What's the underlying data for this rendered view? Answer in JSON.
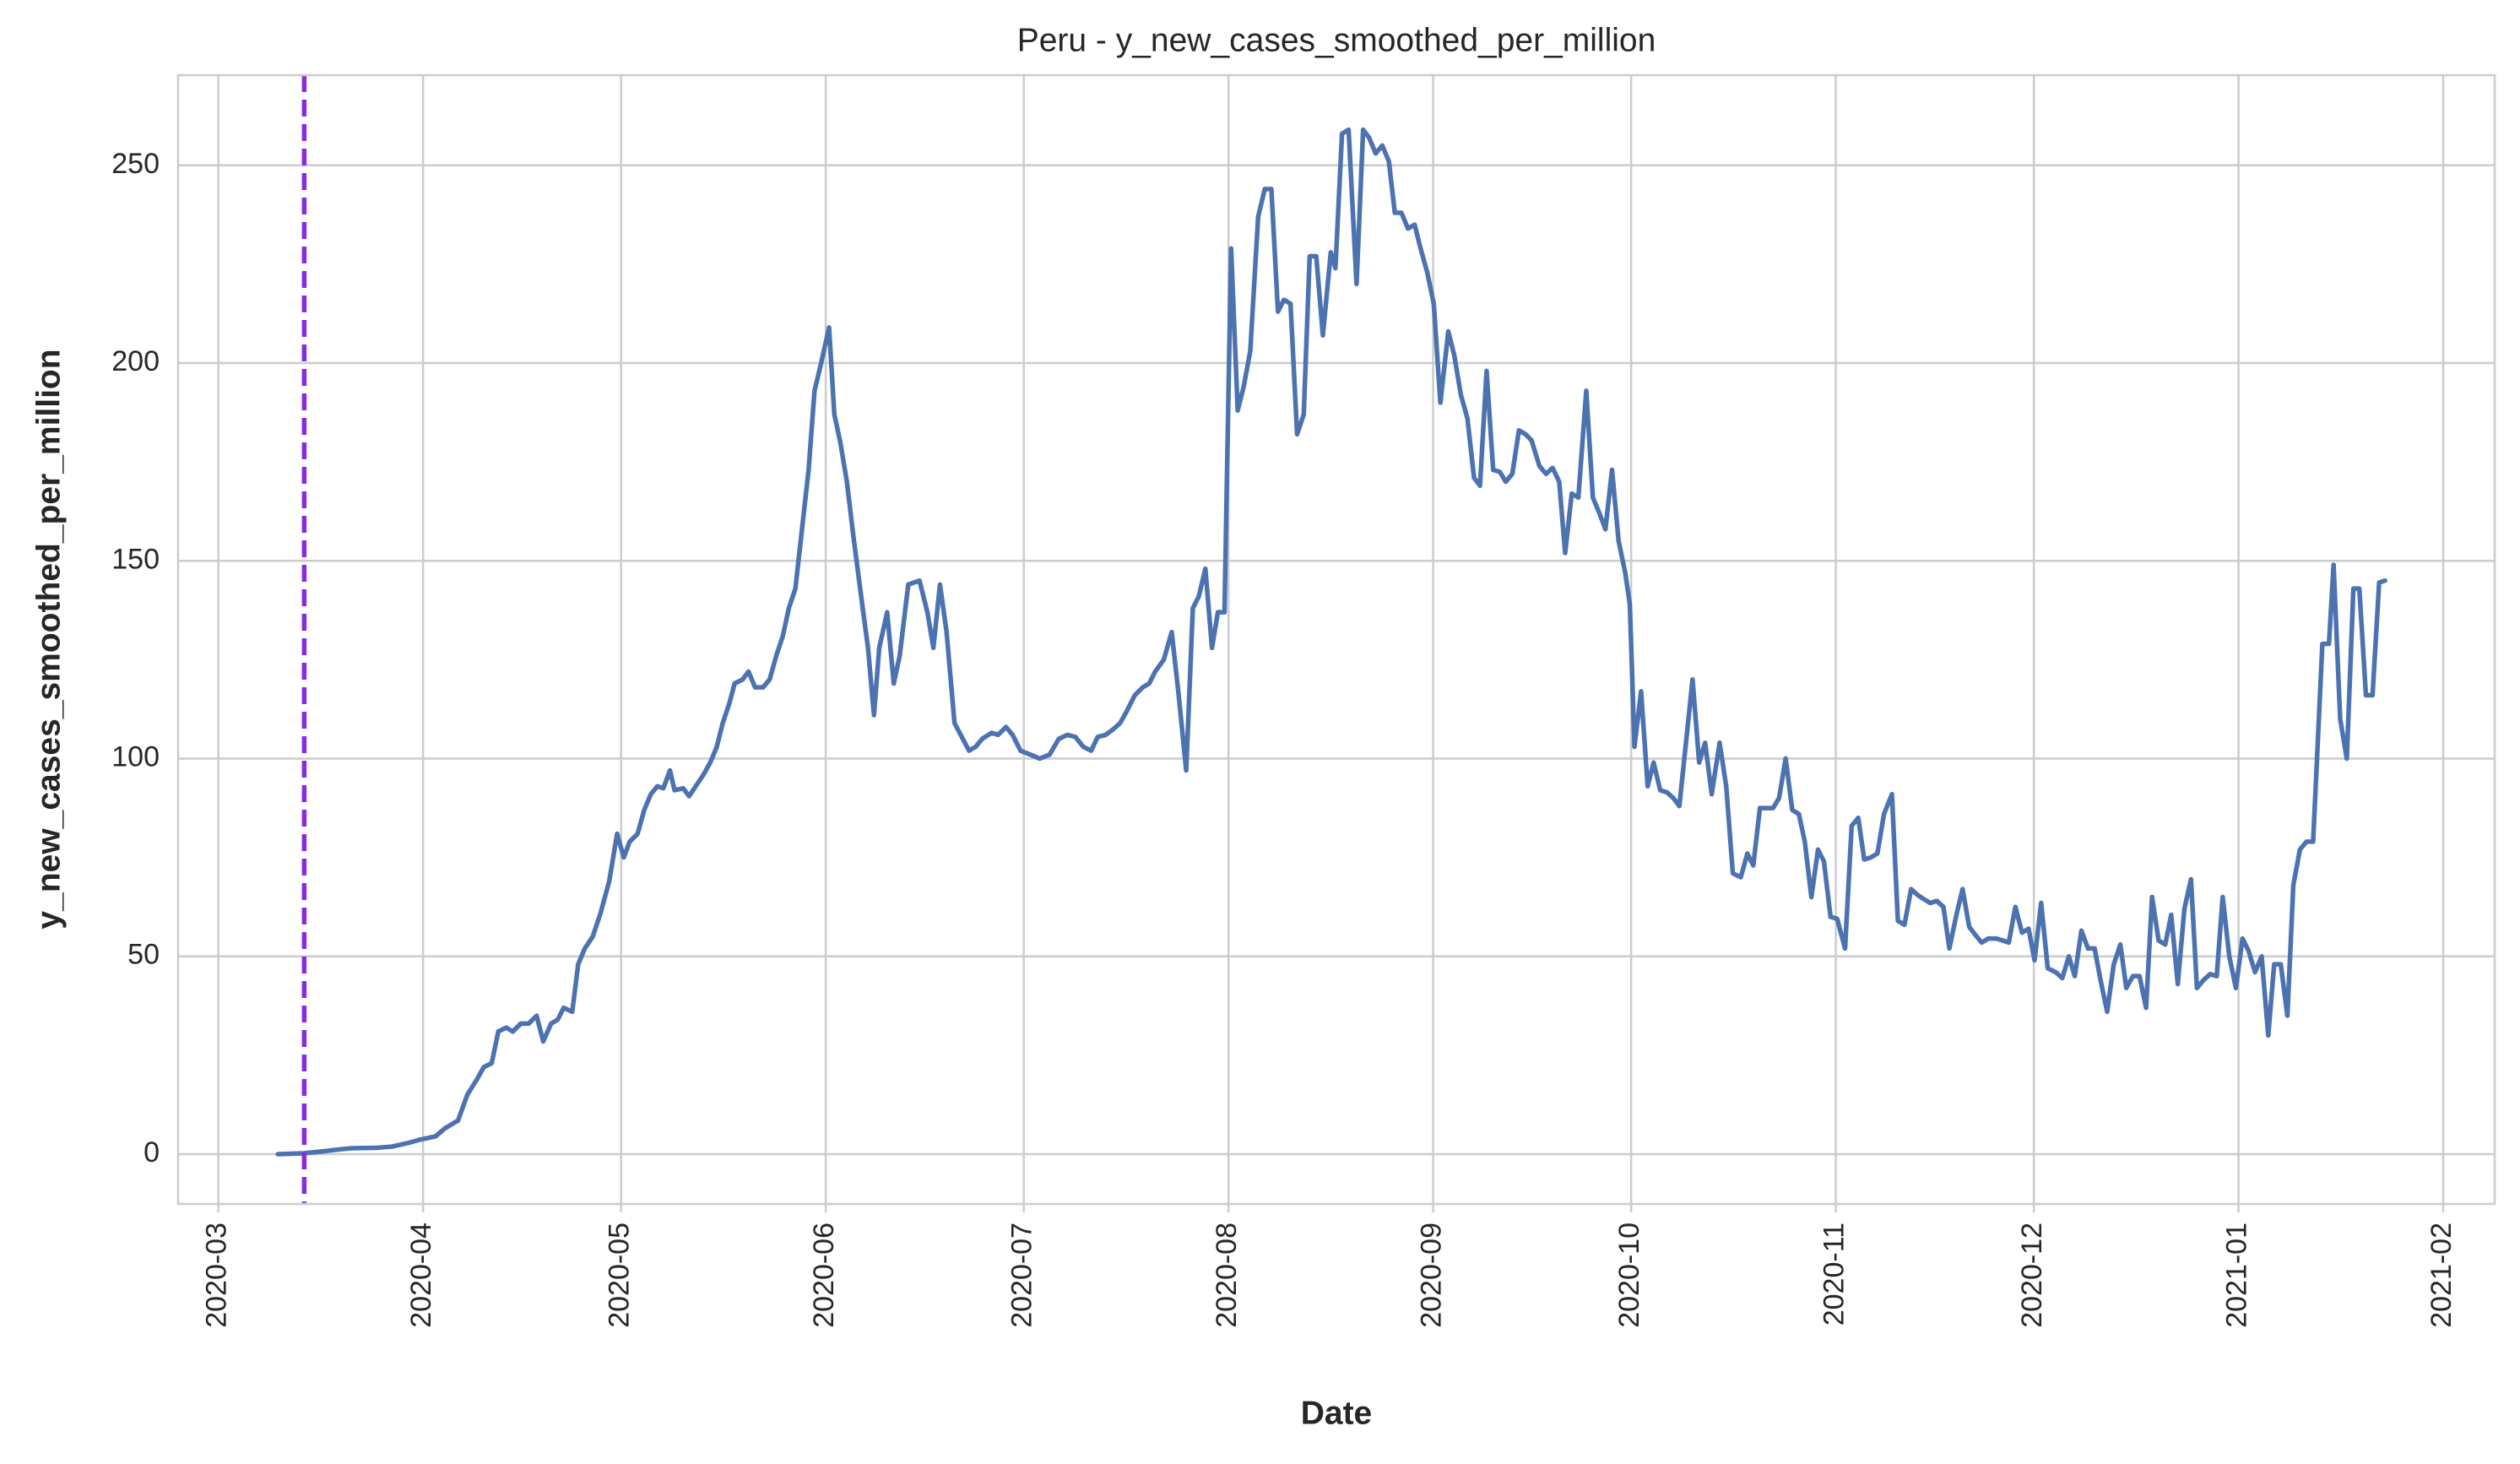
{
  "chart_data": {
    "type": "line",
    "title": "Peru - y_new_cases_smoothed_per_million",
    "x_label": "Date",
    "y_label": "y_new_cases_smoothed_per_million",
    "color": "#4c72b0",
    "grid": true,
    "xlim": [
      18315.9,
      18666.8
    ],
    "ylim": [
      -12.6,
      272.8
    ],
    "yticks": [
      0,
      50,
      100,
      150,
      200,
      250
    ],
    "xticks": [
      {
        "value": 18322,
        "label": "2020-03"
      },
      {
        "value": 18353,
        "label": "2020-04"
      },
      {
        "value": 18383,
        "label": "2020-05"
      },
      {
        "value": 18414,
        "label": "2020-06"
      },
      {
        "value": 18444,
        "label": "2020-07"
      },
      {
        "value": 18475,
        "label": "2020-08"
      },
      {
        "value": 18506,
        "label": "2020-09"
      },
      {
        "value": 18536,
        "label": "2020-10"
      },
      {
        "value": 18567,
        "label": "2020-11"
      },
      {
        "value": 18597,
        "label": "2020-12"
      },
      {
        "value": 18628,
        "label": "2021-01"
      },
      {
        "value": 18659,
        "label": "2021-02"
      }
    ],
    "vline": {
      "x": 18335,
      "color": "#8a2be2",
      "style": "dashed"
    },
    "x": [
      18331,
      18334.9,
      18337.3,
      18339.8,
      18342.2,
      18345.9,
      18348.3,
      18350.7,
      18352.4,
      18354.9,
      18356.3,
      18358.3,
      18359.7,
      18361.2,
      18362.2,
      18363.4,
      18364.4,
      18365.6,
      18366.6,
      18367.8,
      18369,
      18370.2,
      18371.2,
      18372.4,
      18373.4,
      18374.3,
      18375.6,
      18376.5,
      18377.5,
      18378.7,
      18379.9,
      18381.2,
      18382.4,
      18383.4,
      18384.3,
      18385.5,
      18386.5,
      18387.5,
      18388.5,
      18389.4,
      18390.4,
      18391.1,
      18392.4,
      18393.3,
      18394.3,
      18395.5,
      18396.5,
      18397.5,
      18398.4,
      18399.4,
      18400.2,
      18401.4,
      18402.3,
      18403.3,
      18404.5,
      18405.5,
      18406.5,
      18407.5,
      18408.4,
      18409.4,
      18410.4,
      18411.4,
      18412.3,
      18413.3,
      18414.5,
      18415.3,
      18416.2,
      18417.2,
      18418.2,
      18419.6,
      18420.4,
      18421.3,
      18422.1,
      18423.3,
      18424.3,
      18425.2,
      18426.5,
      18428.2,
      18429.4,
      18430.3,
      18431.3,
      18432.3,
      18433.5,
      18435.7,
      18436.7,
      18437.7,
      18439.1,
      18440.1,
      18441.3,
      18442.3,
      18443.5,
      18445,
      18446.4,
      18447.9,
      18449.3,
      18450.6,
      18451.8,
      18453,
      18454.2,
      18455.2,
      18456.4,
      18457.6,
      18458.6,
      18459.6,
      18460.8,
      18462,
      18463,
      18463.9,
      18465.2,
      18466.4,
      18467.4,
      18468.6,
      18469.6,
      18470.5,
      18471.5,
      18472.5,
      18473.4,
      18474.4,
      18475.4,
      18476.4,
      18477.3,
      18478.3,
      18479.5,
      18480.5,
      18481.5,
      18482.5,
      18483.4,
      18484.4,
      18485.4,
      18486.4,
      18487.3,
      18488.3,
      18489.3,
      18490.5,
      18491.2,
      18492.2,
      18493.2,
      18494.4,
      18495.4,
      18496.3,
      18497.3,
      18498.3,
      18499.3,
      18500.2,
      18501.2,
      18502.2,
      18503.2,
      18504.1,
      18505.1,
      18506.1,
      18507.1,
      18508.3,
      18509.2,
      18510.2,
      18511.2,
      18512.2,
      18513.1,
      18514.1,
      18515.1,
      18516.1,
      18517,
      18518,
      18519,
      18520,
      18520.9,
      18522.1,
      18523.1,
      18524.1,
      18525.1,
      18526,
      18527,
      18528,
      18529.2,
      18530.2,
      18531.2,
      18532.1,
      18533.1,
      18534.1,
      18535.1,
      18535.8,
      18536.5,
      18537.5,
      18538.5,
      18539.4,
      18540.4,
      18541.4,
      18542.4,
      18543.3,
      18544.3,
      18545.3,
      18546.3,
      18547.2,
      18548.2,
      18549.4,
      18550.4,
      18551.4,
      18552.6,
      18553.6,
      18554.5,
      18555.5,
      18556.5,
      18557.5,
      18558.4,
      18559.4,
      18560.4,
      18561.4,
      18562.3,
      18563.3,
      18564.3,
      18565.2,
      18566.2,
      18567.2,
      18568.4,
      18569.4,
      18570.4,
      18571.3,
      18572.3,
      18573.3,
      18574.3,
      18575.5,
      18576.4,
      18577.4,
      18578.4,
      18579.4,
      18580.3,
      18581.3,
      18582.3,
      18583.3,
      18584.2,
      18585.2,
      18586.2,
      18587.2,
      18588.1,
      18589.1,
      18590.1,
      18591.3,
      18592.3,
      18593.2,
      18594.2,
      18595.2,
      18596.2,
      18597.1,
      18598.1,
      18599.1,
      18600.3,
      18601.3,
      18602.3,
      18603.2,
      18604.2,
      18605.2,
      18606.2,
      18607.1,
      18608.1,
      18609.1,
      18610.1,
      18611,
      18612,
      18613,
      18614,
      18614.9,
      18615.9,
      18616.9,
      18617.8,
      18618.8,
      18619.8,
      18620.8,
      18621.7,
      18622.7,
      18623.7,
      18624.7,
      18625.6,
      18626.6,
      18627.6,
      18628.6,
      18629.5,
      18630.5,
      18631.5,
      18632.5,
      18633.4,
      18634.4,
      18635.4,
      18636.3,
      18637.3,
      18638.3,
      18639.3,
      18640.7,
      18641.7,
      18642.4,
      18643.4,
      18644.4,
      18645.4,
      18646.3,
      18647.3,
      18648.3,
      18649.3,
      18650.2
    ],
    "values": [
      0,
      0.2,
      0.6,
      1.1,
      1.5,
      1.6,
      1.9,
      2.8,
      3.6,
      4.5,
      6.5,
      8.5,
      15,
      19,
      22,
      23,
      31,
      32,
      31,
      33,
      33,
      35,
      28.5,
      33,
      34,
      37,
      36,
      48,
      52,
      55,
      61,
      69,
      81,
      75,
      79,
      81,
      87,
      91,
      93,
      92.5,
      97,
      92,
      92.5,
      90.5,
      93,
      96,
      99,
      103,
      109,
      114,
      119,
      120,
      122,
      118,
      118,
      120,
      126,
      131,
      138,
      143,
      158,
      173,
      193,
      200,
      209,
      187,
      180,
      170,
      156,
      138,
      128,
      111,
      128,
      137,
      119,
      126,
      144,
      145,
      137,
      128,
      144,
      132,
      109,
      102,
      103,
      105,
      106.5,
      106,
      108,
      106,
      102,
      101,
      100,
      101,
      105,
      106,
      105.5,
      103,
      102,
      105.5,
      106,
      107.5,
      109,
      112,
      116,
      118,
      119,
      122,
      125,
      132,
      117,
      97,
      138,
      141,
      148,
      128,
      137,
      137,
      229,
      188,
      194,
      203,
      237,
      244,
      244,
      213,
      216,
      215,
      182,
      187,
      227,
      227,
      207,
      228,
      224,
      258,
      259,
      220,
      259,
      257,
      253,
      255,
      251,
      238,
      238,
      234,
      235,
      229,
      223,
      215,
      190,
      208,
      202,
      192,
      186,
      171,
      169,
      198,
      173,
      172.5,
      170,
      172,
      183,
      182,
      180.5,
      174,
      172,
      173.5,
      170,
      152,
      167,
      166,
      193,
      166,
      162,
      158,
      173,
      155,
      147,
      139,
      103,
      117,
      93,
      99,
      92,
      91.5,
      90,
      88,
      104,
      120,
      99,
      104,
      91,
      104,
      93,
      71,
      70,
      76,
      73,
      87.5,
      87.5,
      87.5,
      90,
      100,
      87,
      86,
      79,
      65,
      77,
      74,
      60,
      59.5,
      52,
      83,
      85,
      74.5,
      75,
      76,
      86,
      91,
      59,
      58,
      67,
      65.5,
      64.5,
      63.5,
      64,
      62.5,
      52,
      60,
      67,
      57.5,
      55.5,
      53.5,
      54.5,
      54.5,
      54,
      53.5,
      62.5,
      56,
      57,
      49,
      63.5,
      47,
      46,
      44.5,
      50,
      45,
      56.5,
      52,
      52,
      44,
      36,
      48,
      53,
      42,
      45,
      45,
      37,
      65,
      54,
      53,
      60.5,
      43,
      62,
      69.5,
      42,
      44,
      45.5,
      45,
      65,
      50,
      42,
      54.5,
      51.5,
      46,
      50,
      30,
      48,
      48,
      35,
      68,
      77,
      79,
      79,
      129,
      129,
      149,
      110,
      100,
      143,
      143,
      116,
      116,
      144.5,
      145
    ]
  }
}
